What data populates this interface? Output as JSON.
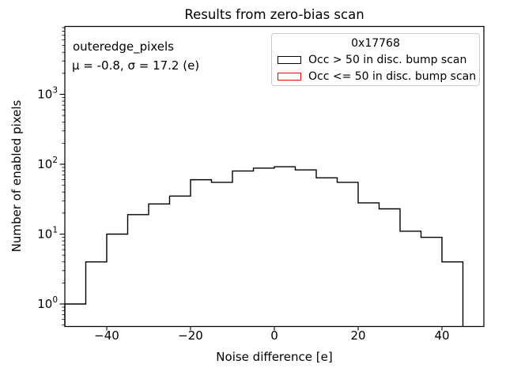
{
  "title": "Results from zero-bias scan",
  "annotation": {
    "dataset_name": "outeredge_pixels",
    "stats": "μ = -0.8, σ = 17.2 (e)"
  },
  "legend": {
    "title": "0x17768",
    "entries": [
      {
        "label": "Occ > 50 in disc. bump scan",
        "color": "#000000"
      },
      {
        "label": "Occ <= 50 in disc. bump scan",
        "color": "#ff0000"
      }
    ]
  },
  "chart_data": {
    "type": "histogram-step",
    "title": "Results from zero-bias scan",
    "xlabel": "Noise difference [e]",
    "ylabel": "Number of enabled pixels",
    "xlim": [
      -50,
      50
    ],
    "yscale": "log",
    "ylim": [
      0.48,
      9500
    ],
    "xticks": [
      -40,
      -20,
      0,
      20,
      40
    ],
    "ytick_values": [
      1,
      10,
      100,
      1000
    ],
    "grid": false,
    "legend_position": "upper right",
    "bin_edges": [
      -50,
      -45,
      -40,
      -35,
      -30,
      -25,
      -20,
      -15,
      -10,
      -5,
      0,
      5,
      10,
      15,
      20,
      25,
      30,
      35,
      40,
      45
    ],
    "series": [
      {
        "name": "Occ > 50 in disc. bump scan",
        "color": "#000000",
        "counts": [
          1,
          4,
          10,
          19,
          27,
          35,
          60,
          55,
          80,
          88,
          92,
          83,
          64,
          55,
          28,
          23,
          11,
          9,
          4
        ]
      },
      {
        "name": "Occ <= 50 in disc. bump scan",
        "color": "#ff0000",
        "counts": []
      }
    ]
  }
}
